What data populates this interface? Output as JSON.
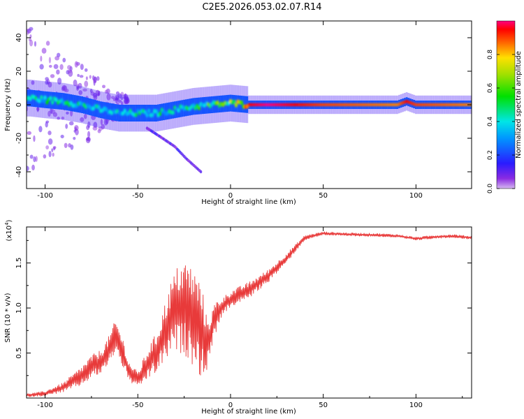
{
  "figure_title": "C2E5.2026.053.02.07.R14",
  "chart_data": [
    {
      "type": "heatmap",
      "xlabel": "Height of straight line (km)",
      "ylabel": "Frequency (Hz)",
      "xlim": [
        -110,
        130
      ],
      "ylim": [
        -50,
        50
      ],
      "x_ticks": [
        -100,
        -50,
        0,
        50,
        100
      ],
      "y_ticks": [
        -40,
        -20,
        0,
        20,
        40
      ],
      "colorbar": {
        "label": "Normalized spectral amplitude",
        "range": [
          0.0,
          1.0
        ],
        "ticks": [
          "0.0",
          "0.2",
          "0.4",
          "0.6",
          "0.8"
        ],
        "tick_values": [
          0.0,
          0.2,
          0.4,
          0.6,
          0.8
        ],
        "colormap": "rainbow (purple-blue-cyan-green-yellow-red-magenta)"
      },
      "ridge": {
        "description": "main spectral ridge, frequency vs height",
        "x": [
          -108,
          -100,
          -90,
          -80,
          -70,
          -60,
          -50,
          -40,
          -30,
          -20,
          -10,
          0,
          10,
          20,
          50,
          90,
          95,
          100,
          130
        ],
        "y": [
          4,
          3,
          2,
          0,
          -3,
          -5,
          -5,
          -5,
          -3,
          -1,
          0,
          1,
          0,
          0,
          0,
          0,
          2,
          0,
          0
        ],
        "amplitude": [
          0.45,
          0.5,
          0.45,
          0.45,
          0.4,
          0.4,
          0.45,
          0.45,
          0.45,
          0.5,
          0.55,
          0.65,
          0.95,
          1.0,
          0.9,
          0.85,
          0.95,
          0.9,
          0.85
        ]
      },
      "faint_branch": {
        "description": "weak descending tail",
        "x": [
          -45,
          -38,
          -30,
          -24,
          -16
        ],
        "y": [
          -14,
          -19,
          -25,
          -32,
          -40
        ]
      },
      "grid": false
    },
    {
      "type": "line",
      "xlabel": "Height of straight line (km)",
      "ylabel": "SNR (10 * v/v)",
      "y_scale_label": "(x10",
      "y_scale_exponent": "4",
      "xlim": [
        -110,
        130
      ],
      "ylim": [
        0,
        1.9
      ],
      "x_ticks": [
        -100,
        -50,
        0,
        50,
        100
      ],
      "y_ticks": [
        0.5,
        1.0,
        1.5
      ],
      "y_tick_labels": [
        "0.5",
        "1.0",
        "1.5"
      ],
      "series": [
        {
          "color": "#e83a3a",
          "envelope_x": [
            -110,
            -100,
            -90,
            -80,
            -75,
            -70,
            -65,
            -62,
            -58,
            -55,
            -50,
            -47,
            -44,
            -40,
            -36,
            -32,
            -28,
            -24,
            -20,
            -17,
            -15,
            -13,
            -11,
            -8,
            -5,
            0,
            5,
            10,
            20,
            30,
            40,
            50,
            60,
            80,
            90,
            100,
            110,
            120,
            130
          ],
          "envelope_y": [
            0.03,
            0.05,
            0.12,
            0.25,
            0.35,
            0.4,
            0.55,
            0.7,
            0.5,
            0.3,
            0.2,
            0.3,
            0.4,
            0.5,
            0.7,
            0.9,
            1.0,
            1.0,
            0.9,
            0.8,
            0.7,
            0.6,
            0.7,
            0.9,
            1.0,
            1.1,
            1.15,
            1.2,
            1.35,
            1.55,
            1.78,
            1.83,
            1.82,
            1.81,
            1.8,
            1.77,
            1.79,
            1.8,
            1.78
          ],
          "spread": [
            0.02,
            0.03,
            0.06,
            0.12,
            0.14,
            0.15,
            0.18,
            0.2,
            0.18,
            0.12,
            0.1,
            0.15,
            0.2,
            0.25,
            0.35,
            0.45,
            0.55,
            0.6,
            0.6,
            0.6,
            0.55,
            0.35,
            0.25,
            0.2,
            0.12,
            0.1,
            0.1,
            0.1,
            0.08,
            0.06,
            0.03,
            0.02,
            0.02,
            0.02,
            0.02,
            0.02,
            0.02,
            0.02,
            0.02
          ]
        }
      ]
    }
  ]
}
